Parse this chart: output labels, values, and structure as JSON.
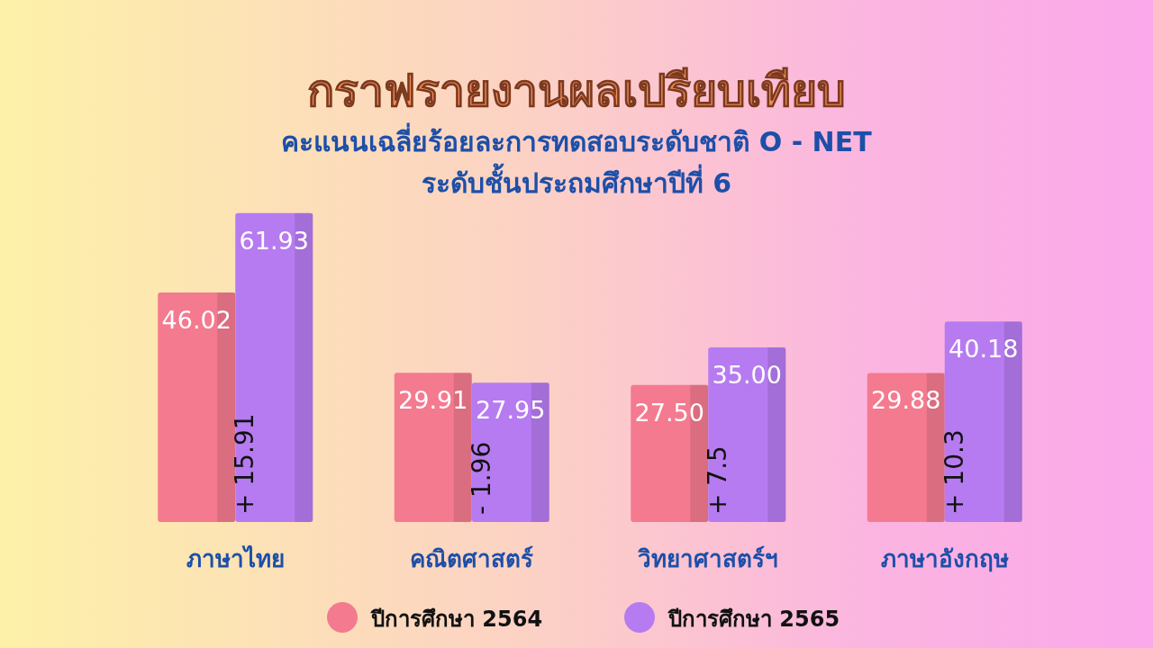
{
  "chart_data": {
    "type": "bar",
    "title": "กราฟรายงานผลเปรียบเทียบ",
    "subtitle": "คะแนนเฉลี่ยร้อยละการทดสอบระดับชาติ  O - NET\nระดับชั้นประถมศึกษาปีที่ 6",
    "categories": [
      "ภาษาไทย",
      "คณิตศาสตร์",
      "วิทยาศาสตร์ฯ",
      "ภาษาอังกฤษ"
    ],
    "series": [
      {
        "name": "ปีการศึกษา 2564",
        "color": "#f47a8f",
        "values": [
          46.02,
          29.91,
          27.5,
          29.88
        ],
        "value_labels": [
          "46.02",
          "29.91",
          "27.50",
          "29.88"
        ]
      },
      {
        "name": "ปีการศึกษา 2565",
        "color": "#b67bf0",
        "values": [
          61.93,
          27.95,
          35.0,
          40.18
        ],
        "value_labels": [
          "61.93",
          "27.95",
          "35.00",
          "40.18"
        ]
      }
    ],
    "annotations": [
      "+ 15.91",
      "- 1.96",
      "+ 7.5",
      "+ 10.3"
    ],
    "legend": "bottom"
  }
}
